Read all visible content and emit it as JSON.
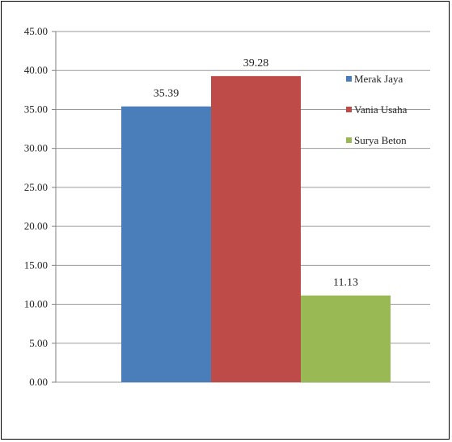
{
  "chart_data": {
    "type": "bar",
    "title": "",
    "xlabel": "",
    "ylabel": "",
    "ylim": [
      0,
      45
    ],
    "ytick_step": 5,
    "ytick_labels": [
      "0.00",
      "5.00",
      "10.00",
      "15.00",
      "20.00",
      "25.00",
      "30.00",
      "35.00",
      "40.00",
      "45.00"
    ],
    "grid": true,
    "legend_position": "right",
    "categories": [
      ""
    ],
    "series": [
      {
        "name": "Merak Jaya",
        "values": [
          35.39
        ],
        "label": "35.39",
        "color": "#4a7ebb"
      },
      {
        "name": "Vania Usaha",
        "values": [
          39.28
        ],
        "label": "39.28",
        "color": "#be4b48"
      },
      {
        "name": "Surya Beton",
        "values": [
          11.13
        ],
        "label": "11.13",
        "color": "#98b954"
      }
    ]
  }
}
